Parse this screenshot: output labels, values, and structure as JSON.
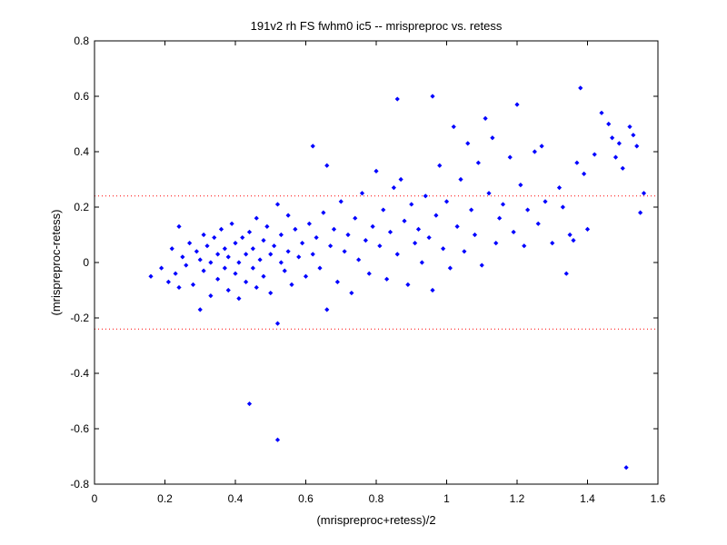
{
  "chart_data": {
    "type": "scatter",
    "title": "191v2 rh FS fwhm0 ic5 -- mrispreproc vs. retess",
    "xlabel": "(mrispreproc+retess)/2",
    "ylabel": "(mrispreproc-retess)",
    "xlim": [
      0,
      1.6
    ],
    "ylim": [
      -0.8,
      0.8
    ],
    "xticks": [
      "0",
      "0.2",
      "0.4",
      "0.6",
      "0.8",
      "1",
      "1.2",
      "1.4",
      "1.6"
    ],
    "yticks": [
      "0.8",
      "0.6",
      "0.4",
      "0.2",
      "0",
      "-0.2",
      "-0.4",
      "-0.6",
      "-0.8"
    ],
    "grid": false,
    "reference_lines": [
      {
        "y": 0.24,
        "style": "dotted",
        "color": "#ff0000"
      },
      {
        "y": -0.24,
        "style": "dotted",
        "color": "#ff0000"
      }
    ],
    "marker_color": "#0000ff",
    "series": [
      {
        "points": [
          [
            0.16,
            -0.05
          ],
          [
            0.19,
            -0.02
          ],
          [
            0.21,
            -0.07
          ],
          [
            0.22,
            0.05
          ],
          [
            0.23,
            -0.04
          ],
          [
            0.24,
            0.13
          ],
          [
            0.24,
            -0.09
          ],
          [
            0.25,
            0.02
          ],
          [
            0.26,
            -0.01
          ],
          [
            0.27,
            0.07
          ],
          [
            0.28,
            -0.08
          ],
          [
            0.29,
            0.04
          ],
          [
            0.3,
            -0.17
          ],
          [
            0.3,
            0.01
          ],
          [
            0.31,
            0.1
          ],
          [
            0.31,
            -0.03
          ],
          [
            0.32,
            0.06
          ],
          [
            0.33,
            -0.12
          ],
          [
            0.33,
            0.0
          ],
          [
            0.34,
            0.09
          ],
          [
            0.35,
            -0.06
          ],
          [
            0.35,
            0.03
          ],
          [
            0.36,
            0.12
          ],
          [
            0.37,
            -0.02
          ],
          [
            0.37,
            0.05
          ],
          [
            0.38,
            -0.1
          ],
          [
            0.38,
            0.02
          ],
          [
            0.39,
            0.14
          ],
          [
            0.4,
            -0.04
          ],
          [
            0.4,
            0.07
          ],
          [
            0.41,
            0.0
          ],
          [
            0.41,
            -0.13
          ],
          [
            0.42,
            0.09
          ],
          [
            0.43,
            0.03
          ],
          [
            0.43,
            -0.07
          ],
          [
            0.44,
            0.11
          ],
          [
            0.45,
            -0.02
          ],
          [
            0.45,
            0.05
          ],
          [
            0.46,
            0.16
          ],
          [
            0.46,
            -0.09
          ],
          [
            0.47,
            0.01
          ],
          [
            0.48,
            0.08
          ],
          [
            0.48,
            -0.05
          ],
          [
            0.49,
            0.13
          ],
          [
            0.5,
            0.03
          ],
          [
            0.5,
            -0.11
          ],
          [
            0.51,
            0.06
          ],
          [
            0.52,
            0.21
          ],
          [
            0.52,
            -0.22
          ],
          [
            0.53,
            0.0
          ],
          [
            0.53,
            0.1
          ],
          [
            0.54,
            -0.03
          ],
          [
            0.55,
            0.17
          ],
          [
            0.55,
            0.04
          ],
          [
            0.56,
            -0.08
          ],
          [
            0.57,
            0.12
          ],
          [
            0.58,
            0.02
          ],
          [
            0.59,
            0.07
          ],
          [
            0.6,
            -0.05
          ],
          [
            0.61,
            0.14
          ],
          [
            0.62,
            0.42
          ],
          [
            0.62,
            0.03
          ],
          [
            0.63,
            0.09
          ],
          [
            0.64,
            -0.02
          ],
          [
            0.65,
            0.18
          ],
          [
            0.66,
            0.35
          ],
          [
            0.66,
            -0.17
          ],
          [
            0.67,
            0.06
          ],
          [
            0.68,
            0.12
          ],
          [
            0.69,
            -0.07
          ],
          [
            0.7,
            0.22
          ],
          [
            0.71,
            0.04
          ],
          [
            0.72,
            0.1
          ],
          [
            0.73,
            -0.11
          ],
          [
            0.74,
            0.16
          ],
          [
            0.75,
            0.01
          ],
          [
            0.76,
            0.25
          ],
          [
            0.77,
            0.08
          ],
          [
            0.78,
            -0.04
          ],
          [
            0.79,
            0.13
          ],
          [
            0.8,
            0.33
          ],
          [
            0.81,
            0.06
          ],
          [
            0.82,
            0.19
          ],
          [
            0.83,
            -0.06
          ],
          [
            0.84,
            0.11
          ],
          [
            0.85,
            0.27
          ],
          [
            0.86,
            0.59
          ],
          [
            0.86,
            0.03
          ],
          [
            0.87,
            0.3
          ],
          [
            0.88,
            0.15
          ],
          [
            0.89,
            -0.08
          ],
          [
            0.9,
            0.21
          ],
          [
            0.91,
            0.07
          ],
          [
            0.92,
            0.12
          ],
          [
            0.93,
            0.0
          ],
          [
            0.94,
            0.24
          ],
          [
            0.95,
            0.09
          ],
          [
            0.96,
            0.6
          ],
          [
            0.96,
            -0.1
          ],
          [
            0.97,
            0.17
          ],
          [
            0.98,
            0.35
          ],
          [
            0.99,
            0.05
          ],
          [
            1.0,
            0.22
          ],
          [
            1.01,
            -0.02
          ],
          [
            1.02,
            0.49
          ],
          [
            1.03,
            0.13
          ],
          [
            1.04,
            0.3
          ],
          [
            1.05,
            0.04
          ],
          [
            1.06,
            0.43
          ],
          [
            1.07,
            0.19
          ],
          [
            1.08,
            0.1
          ],
          [
            1.09,
            0.36
          ],
          [
            1.1,
            -0.01
          ],
          [
            1.11,
            0.52
          ],
          [
            1.12,
            0.25
          ],
          [
            1.13,
            0.45
          ],
          [
            1.14,
            0.07
          ],
          [
            1.15,
            0.16
          ],
          [
            1.16,
            0.21
          ],
          [
            1.18,
            0.38
          ],
          [
            1.19,
            0.11
          ],
          [
            1.2,
            0.57
          ],
          [
            1.21,
            0.28
          ],
          [
            1.22,
            0.06
          ],
          [
            1.23,
            0.19
          ],
          [
            1.25,
            0.4
          ],
          [
            1.26,
            0.14
          ],
          [
            1.27,
            0.42
          ],
          [
            1.28,
            0.22
          ],
          [
            1.3,
            0.07
          ],
          [
            1.32,
            0.27
          ],
          [
            1.33,
            0.2
          ],
          [
            1.34,
            -0.04
          ],
          [
            1.35,
            0.1
          ],
          [
            1.36,
            0.08
          ],
          [
            1.37,
            0.36
          ],
          [
            1.38,
            0.63
          ],
          [
            1.39,
            0.32
          ],
          [
            1.4,
            0.12
          ],
          [
            1.42,
            0.39
          ],
          [
            1.44,
            0.54
          ],
          [
            1.46,
            0.5
          ],
          [
            1.47,
            0.45
          ],
          [
            1.48,
            0.38
          ],
          [
            1.49,
            0.43
          ],
          [
            1.5,
            0.34
          ],
          [
            1.51,
            -0.74
          ],
          [
            1.52,
            0.49
          ],
          [
            1.53,
            0.46
          ],
          [
            1.54,
            0.42
          ],
          [
            1.55,
            0.18
          ],
          [
            1.56,
            0.25
          ],
          [
            0.44,
            -0.51
          ],
          [
            0.52,
            -0.64
          ]
        ]
      }
    ]
  }
}
